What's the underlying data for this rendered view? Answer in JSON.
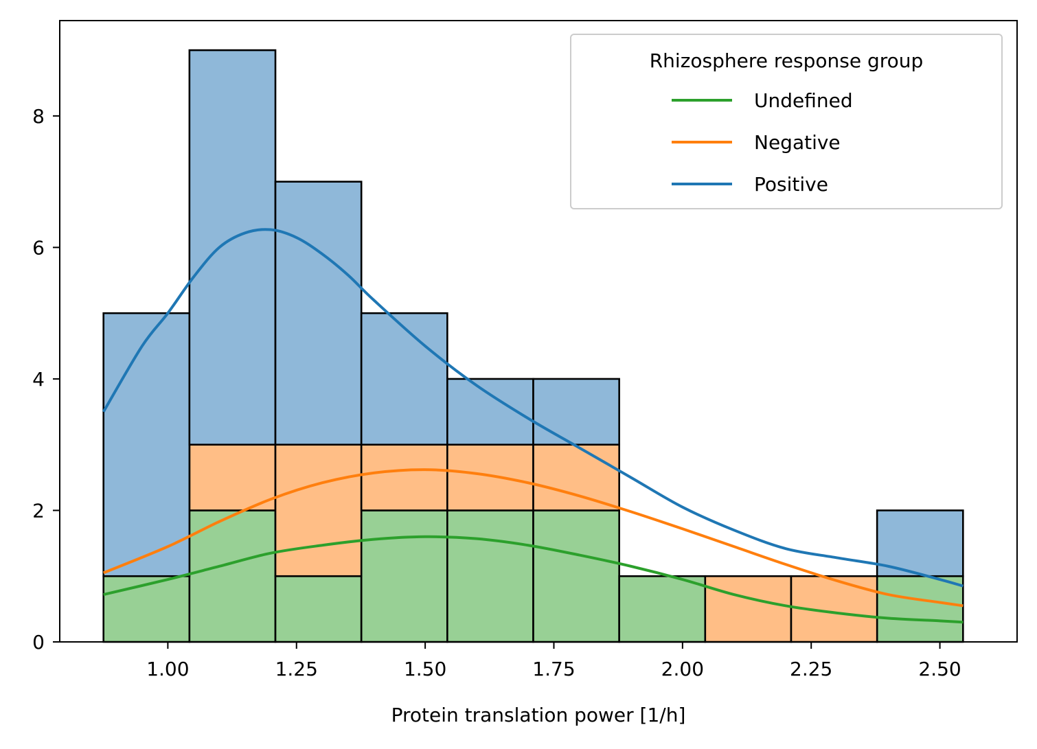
{
  "chart_data": {
    "type": "bar",
    "subtype": "stacked-histogram-with-kde",
    "title": "",
    "xlabel": "Protein translation power [1/h]",
    "ylabel": "",
    "xlim": [
      0.79,
      2.65
    ],
    "ylim": [
      0,
      9.45
    ],
    "x_ticks": [
      1.0,
      1.25,
      1.5,
      1.75,
      2.0,
      2.25,
      2.5
    ],
    "x_tick_labels": [
      "1.00",
      "1.25",
      "1.50",
      "1.75",
      "2.00",
      "2.25",
      "2.50"
    ],
    "y_ticks": [
      0,
      2,
      4,
      6,
      8
    ],
    "y_tick_labels": [
      "0",
      "2",
      "4",
      "6",
      "8"
    ],
    "grid": false,
    "bin_edges": [
      0.875,
      1.042,
      1.209,
      1.376,
      1.543,
      1.71,
      1.877,
      2.044,
      2.211,
      2.378,
      2.545
    ],
    "series": [
      {
        "name": "Undefined",
        "color": "#2ca02c",
        "fill": "#98d095",
        "values": [
          1,
          2,
          1,
          2,
          2,
          2,
          1,
          0,
          0,
          1
        ]
      },
      {
        "name": "Negative",
        "color": "#ff7f0e",
        "fill": "#ffbe86",
        "values": [
          0,
          1,
          2,
          1,
          1,
          1,
          0,
          1,
          1,
          0
        ]
      },
      {
        "name": "Positive",
        "color": "#1f77b4",
        "fill": "#8fb8d9",
        "values": [
          4,
          6,
          4,
          2,
          1,
          1,
          0,
          0,
          0,
          1
        ]
      }
    ],
    "kde": [
      {
        "name": "Undefined",
        "color": "#2ca02c",
        "x": [
          0.875,
          1.0,
          1.1,
          1.2,
          1.3,
          1.4,
          1.5,
          1.6,
          1.7,
          1.8,
          1.9,
          2.0,
          2.1,
          2.2,
          2.3,
          2.4,
          2.5,
          2.545
        ],
        "y": [
          0.72,
          0.95,
          1.15,
          1.35,
          1.47,
          1.56,
          1.6,
          1.57,
          1.47,
          1.32,
          1.15,
          0.95,
          0.72,
          0.55,
          0.44,
          0.36,
          0.32,
          0.3
        ]
      },
      {
        "name": "Negative",
        "color": "#ff7f0e",
        "x": [
          0.875,
          1.0,
          1.1,
          1.2,
          1.3,
          1.4,
          1.5,
          1.6,
          1.7,
          1.8,
          1.9,
          2.0,
          2.1,
          2.2,
          2.3,
          2.4,
          2.5,
          2.545
        ],
        "y": [
          1.05,
          1.45,
          1.83,
          2.17,
          2.42,
          2.57,
          2.62,
          2.56,
          2.42,
          2.22,
          1.98,
          1.72,
          1.45,
          1.18,
          0.93,
          0.72,
          0.6,
          0.55
        ]
      },
      {
        "name": "Positive",
        "color": "#1f77b4",
        "x": [
          0.875,
          0.95,
          1.0,
          1.05,
          1.1,
          1.15,
          1.2,
          1.25,
          1.3,
          1.35,
          1.4,
          1.5,
          1.6,
          1.7,
          1.8,
          1.9,
          2.0,
          2.1,
          2.2,
          2.3,
          2.4,
          2.5,
          2.545
        ],
        "y": [
          3.5,
          4.5,
          5.0,
          5.55,
          6.0,
          6.22,
          6.27,
          6.15,
          5.9,
          5.58,
          5.2,
          4.5,
          3.9,
          3.4,
          2.95,
          2.5,
          2.05,
          1.7,
          1.42,
          1.28,
          1.15,
          0.95,
          0.85
        ]
      }
    ],
    "legend": {
      "title": "Rhizosphere response group",
      "placement": "top-right",
      "entries": [
        {
          "label": "Undefined",
          "color": "#2ca02c"
        },
        {
          "label": "Negative",
          "color": "#ff7f0e"
        },
        {
          "label": "Positive",
          "color": "#1f77b4"
        }
      ]
    }
  }
}
